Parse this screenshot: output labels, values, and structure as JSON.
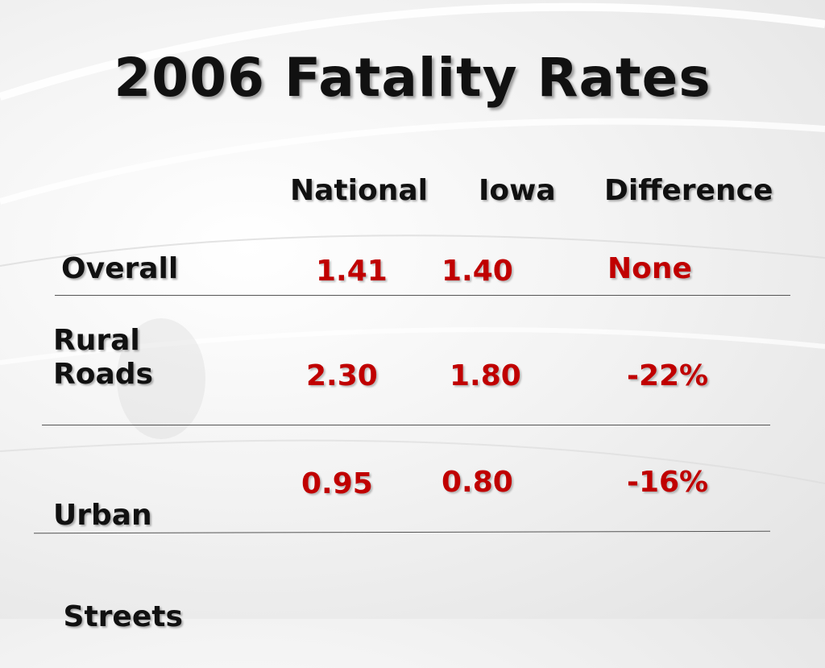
{
  "slide": {
    "title": "2006 Fatality Rates"
  },
  "table": {
    "headers": [
      "National",
      "Iowa",
      "Difference"
    ],
    "rows": [
      {
        "label_lines": [
          "Overall"
        ],
        "national": "1.41",
        "iowa": "1.40",
        "difference": "None"
      },
      {
        "label_lines": [
          "Rural",
          "Roads"
        ],
        "national": "2.30",
        "iowa": "1.80",
        "difference": "-22%"
      },
      {
        "label_lines": [
          "Urban",
          " Streets"
        ],
        "national": "0.95",
        "iowa": "0.80",
        "difference": "-16%"
      }
    ]
  },
  "colors": {
    "title_text": "#111111",
    "value_text": "#c00000",
    "background": "#f3f3f3"
  }
}
